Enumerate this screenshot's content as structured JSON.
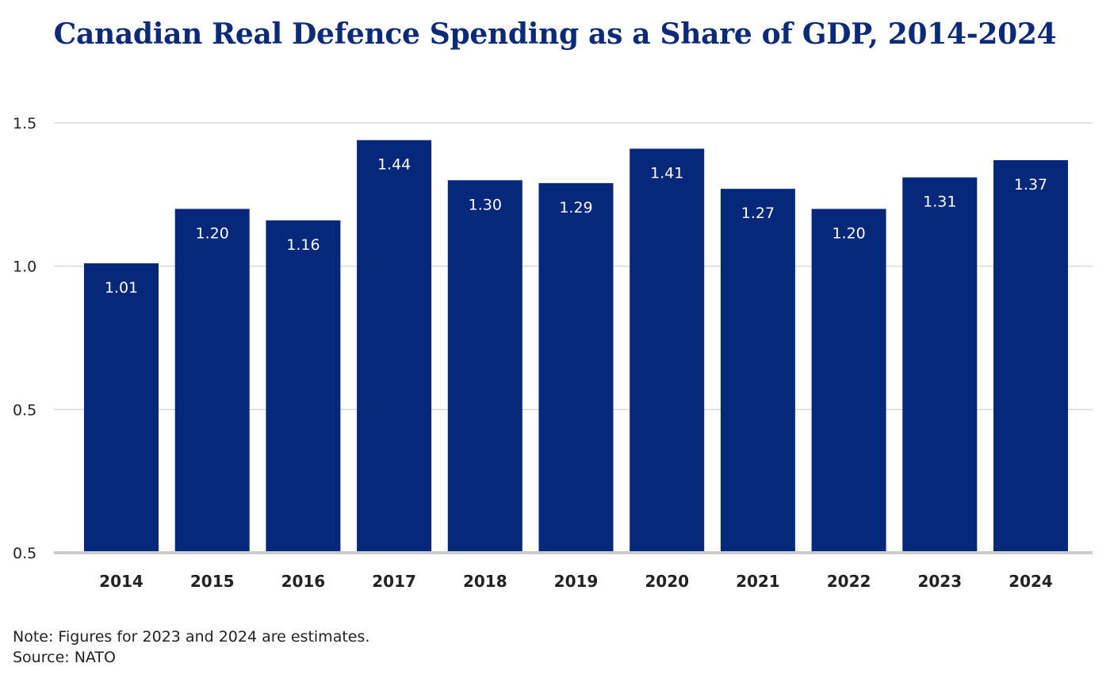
{
  "chart_data": {
    "type": "bar",
    "title": "Canadian Real Defence Spending as a Share of GDP, 2014-2024",
    "categories": [
      "2014",
      "2015",
      "2016",
      "2017",
      "2018",
      "2019",
      "2020",
      "2021",
      "2022",
      "2023",
      "2024"
    ],
    "values": [
      1.01,
      1.2,
      1.16,
      1.44,
      1.3,
      1.29,
      1.41,
      1.27,
      1.2,
      1.31,
      1.37
    ],
    "value_labels": [
      "1.01",
      "1.20",
      "1.16",
      "1.44",
      "1.30",
      "1.29",
      "1.41",
      "1.27",
      "1.20",
      "1.31",
      "1.37"
    ],
    "y_ticks": [
      "0.5",
      "0.5",
      "1.0",
      "1.5"
    ],
    "ylim": [
      0,
      1.5
    ],
    "xlabel": "",
    "ylabel": "",
    "grid": true,
    "legend": "none",
    "bar_color": "#06287a",
    "label_color": "#ffffff",
    "grid_color": "#d9d9d9",
    "axis_color": "#cccccc"
  },
  "notes": {
    "line1": "Note: Figures for 2023 and 2024 are estimates.",
    "line2": "Source: NATO"
  }
}
